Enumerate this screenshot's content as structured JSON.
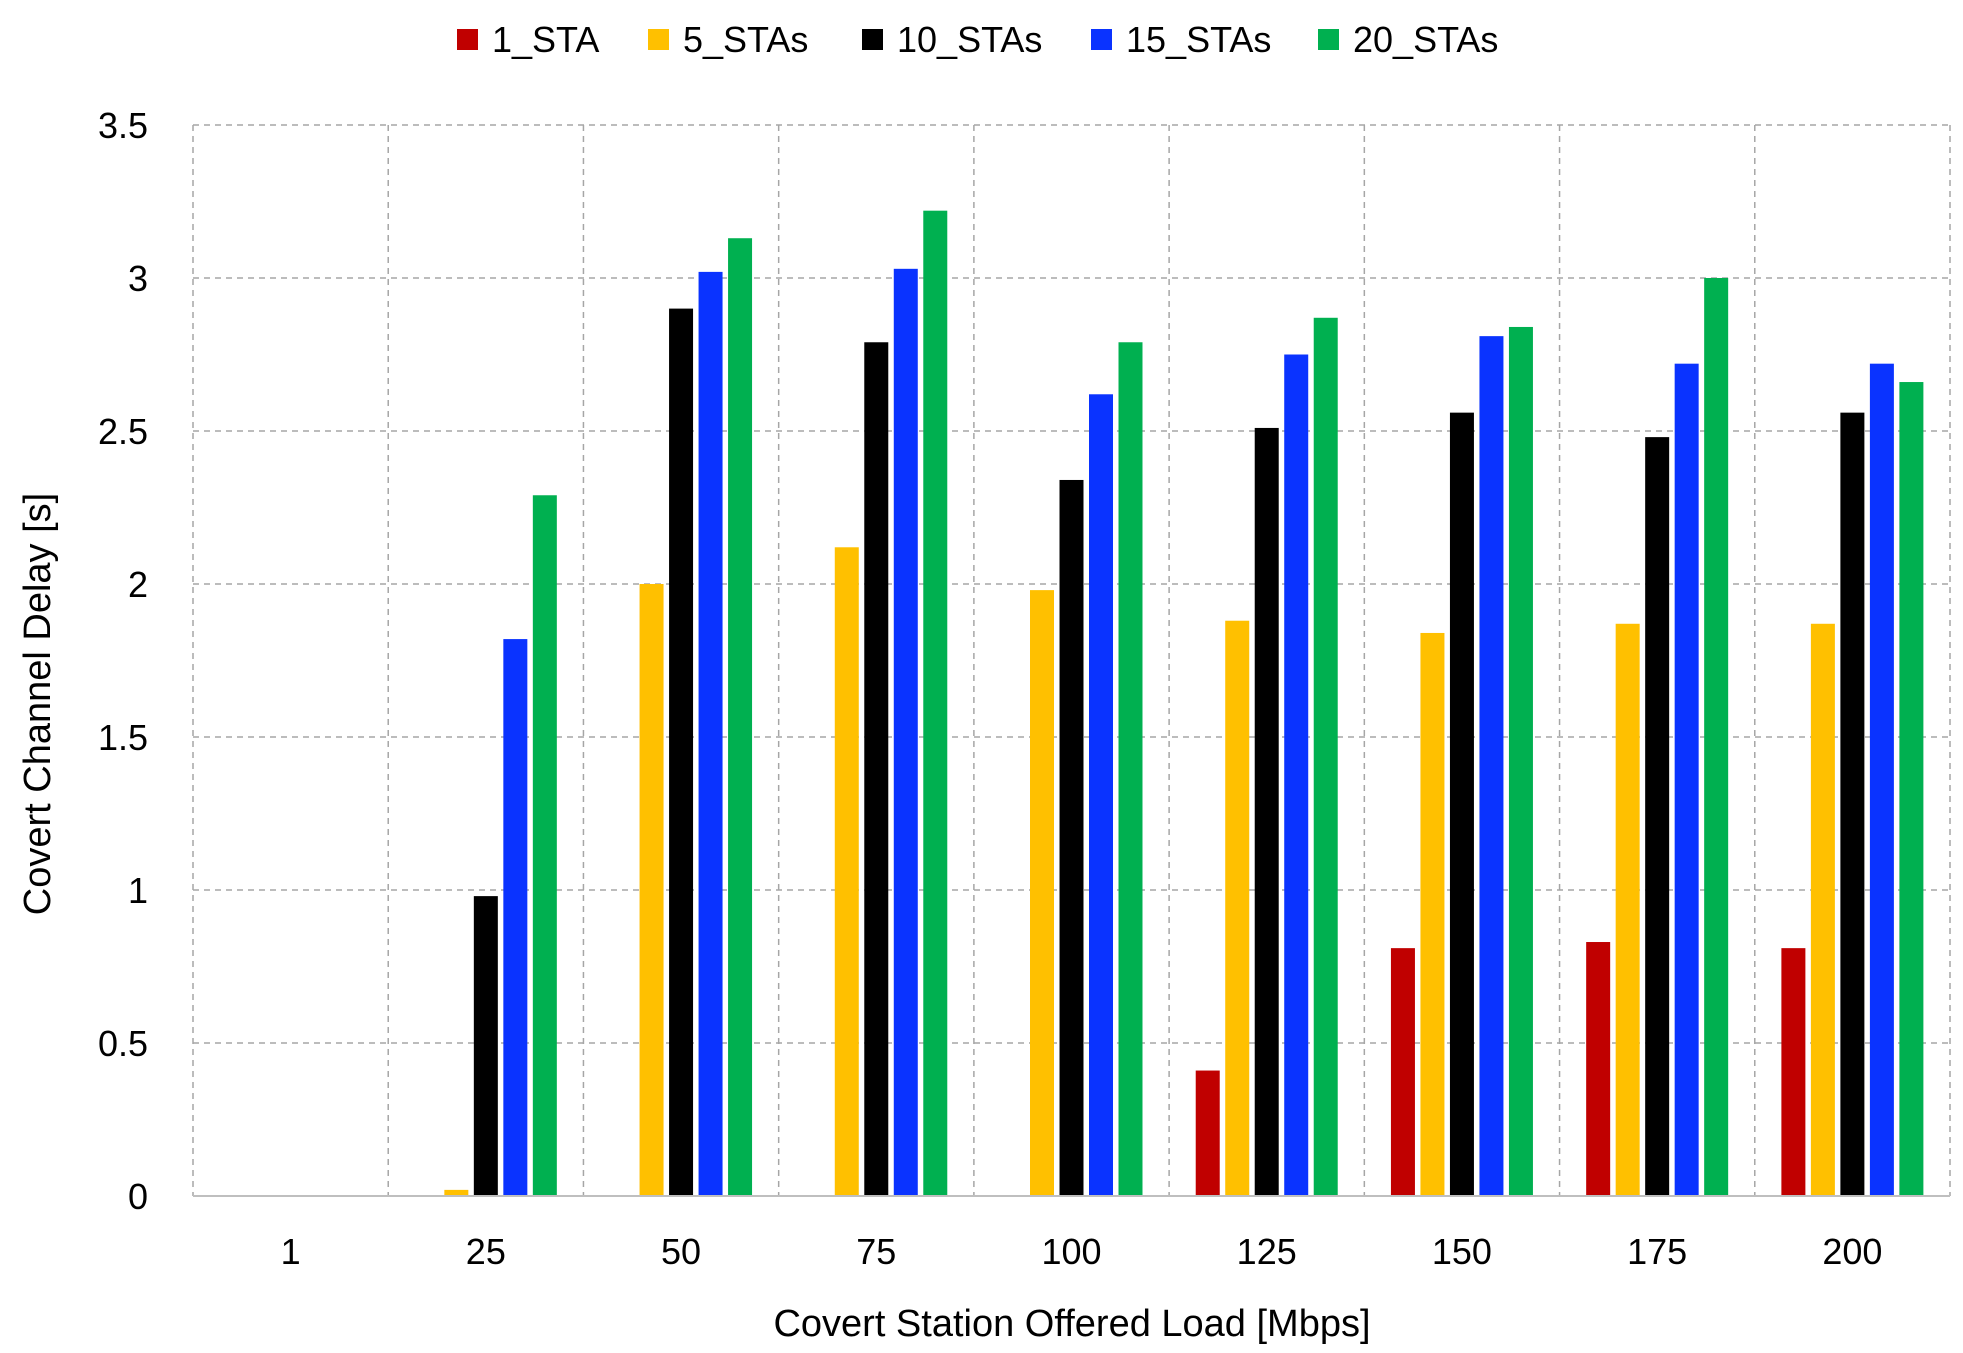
{
  "chart_data": {
    "type": "bar",
    "title": "",
    "xlabel": "Covert Station Offered Load [Mbps]",
    "ylabel": "Covert Channel Delay [s]",
    "ylim": [
      0,
      3.5
    ],
    "yticks": [
      0,
      0.5,
      1,
      1.5,
      2,
      2.5,
      3,
      3.5
    ],
    "ytick_labels": [
      "0",
      "0.5",
      "1",
      "1.5",
      "2",
      "2.5",
      "3",
      "3.5"
    ],
    "grid": true,
    "legend": "top",
    "categories": [
      "1",
      "25",
      "50",
      "75",
      "100",
      "125",
      "150",
      "175",
      "200"
    ],
    "series": [
      {
        "name": "1_STA",
        "color": "#c00000",
        "values": [
          0,
          0,
          0,
          0,
          0,
          0.41,
          0.81,
          0.83,
          0.81
        ]
      },
      {
        "name": "5_STAs",
        "color": "#ffc000",
        "values": [
          0,
          0.02,
          2.0,
          2.12,
          1.98,
          1.88,
          1.84,
          1.87,
          1.87
        ]
      },
      {
        "name": "10_STAs",
        "color": "#000000",
        "values": [
          0,
          0.98,
          2.9,
          2.79,
          2.34,
          2.51,
          2.56,
          2.48,
          2.56
        ]
      },
      {
        "name": "15_STAs",
        "color": "#0a33ff",
        "values": [
          0,
          1.82,
          3.02,
          3.03,
          2.62,
          2.75,
          2.81,
          2.72,
          2.72
        ]
      },
      {
        "name": "20_STAs",
        "color": "#00b050",
        "values": [
          0,
          2.29,
          3.13,
          3.22,
          2.79,
          2.87,
          2.84,
          3.0,
          2.66
        ]
      }
    ]
  }
}
